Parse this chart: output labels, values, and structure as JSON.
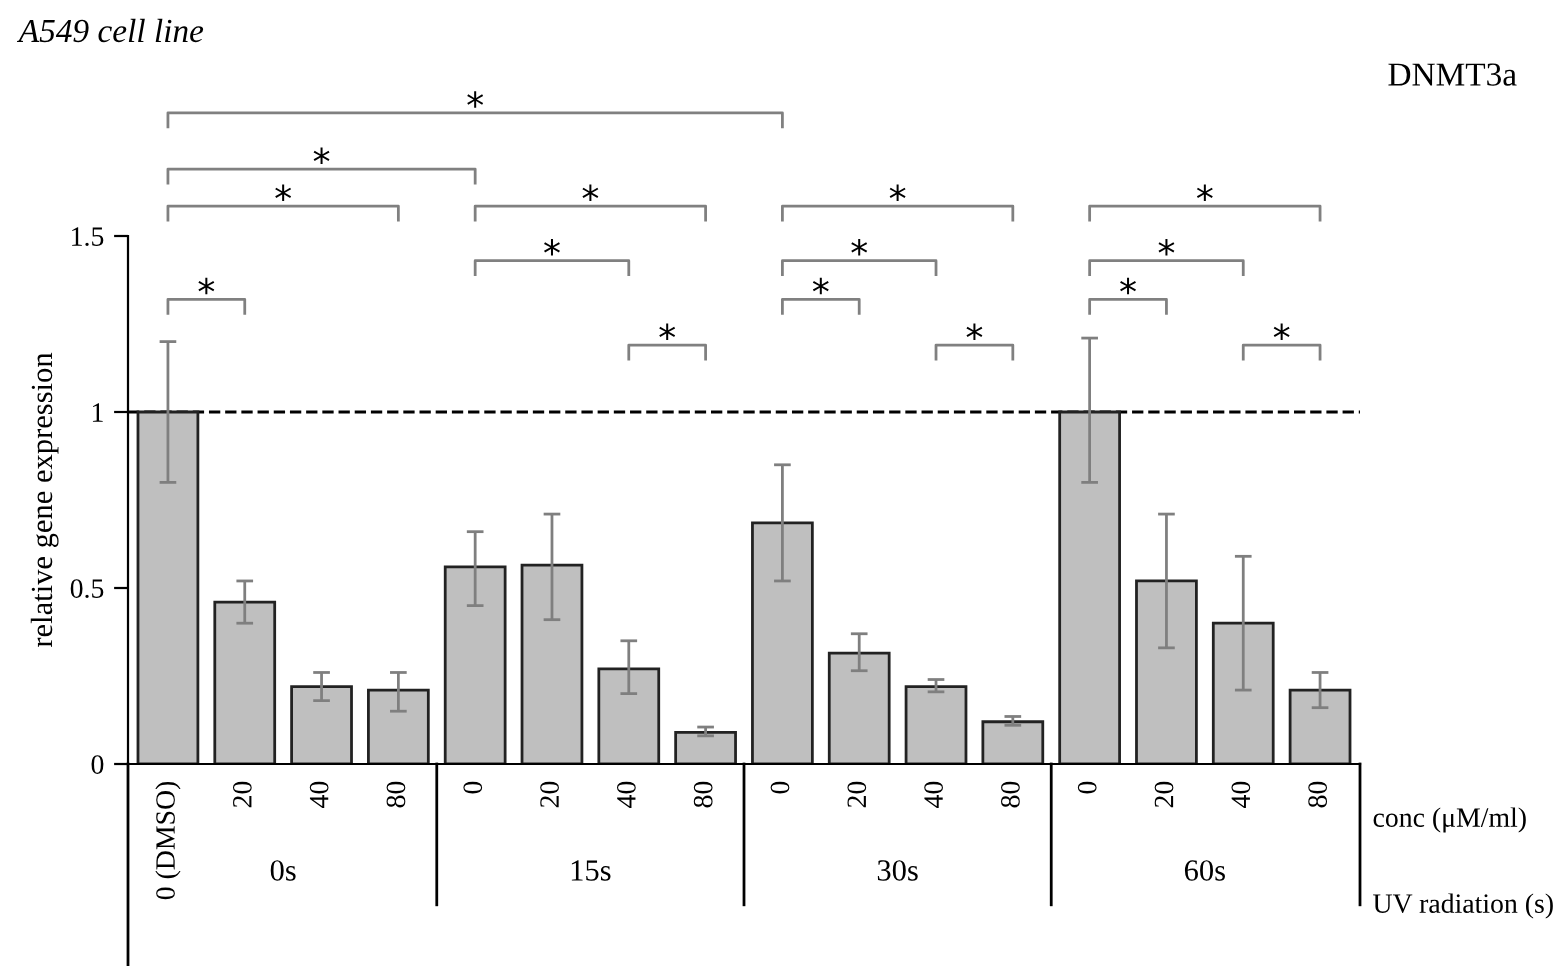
{
  "chart_data": {
    "type": "bar",
    "title": "A549 cell line",
    "subtitle": "DNMT3a",
    "ylabel": "relative gene expression",
    "xlabel": "conc (μM/ml)",
    "categories": [
      "0 (DMSO)",
      "20",
      "40",
      "80",
      "0",
      "20",
      "40",
      "80",
      "0",
      "20",
      "40",
      "80",
      "0",
      "20",
      "40",
      "80"
    ],
    "values": [
      1.0,
      0.46,
      0.22,
      0.21,
      0.56,
      0.565,
      0.27,
      0.09,
      0.685,
      0.315,
      0.22,
      0.12,
      1.0,
      0.52,
      0.4,
      0.21
    ],
    "errors": [
      [
        0.8,
        1.2
      ],
      [
        0.4,
        0.52
      ],
      [
        0.18,
        0.26
      ],
      [
        0.15,
        0.26
      ],
      [
        0.45,
        0.66
      ],
      [
        0.41,
        0.71
      ],
      [
        0.2,
        0.35
      ],
      [
        0.08,
        0.105
      ],
      [
        0.52,
        0.85
      ],
      [
        0.265,
        0.37
      ],
      [
        0.205,
        0.24
      ],
      [
        0.11,
        0.135
      ],
      [
        0.8,
        1.21
      ],
      [
        0.33,
        0.71
      ],
      [
        0.21,
        0.59
      ],
      [
        0.16,
        0.26
      ]
    ],
    "color": "#bfbfbf",
    "ylim": [
      0,
      1.5
    ],
    "yticks": [
      0,
      0.5,
      1,
      1.5
    ],
    "ref_lines": [
      {
        "axis": "y",
        "value": 1,
        "color": "#000000",
        "line_style": "dashed"
      }
    ],
    "annotations": [
      "*",
      "*",
      "*",
      "*",
      "*",
      "*",
      "*",
      "*",
      "*",
      "*",
      "*",
      "*",
      "*",
      "*",
      "*",
      "0s",
      "15s",
      "30s",
      "60s",
      "UV radiation (s)"
    ],
    "grid": false
  }
}
